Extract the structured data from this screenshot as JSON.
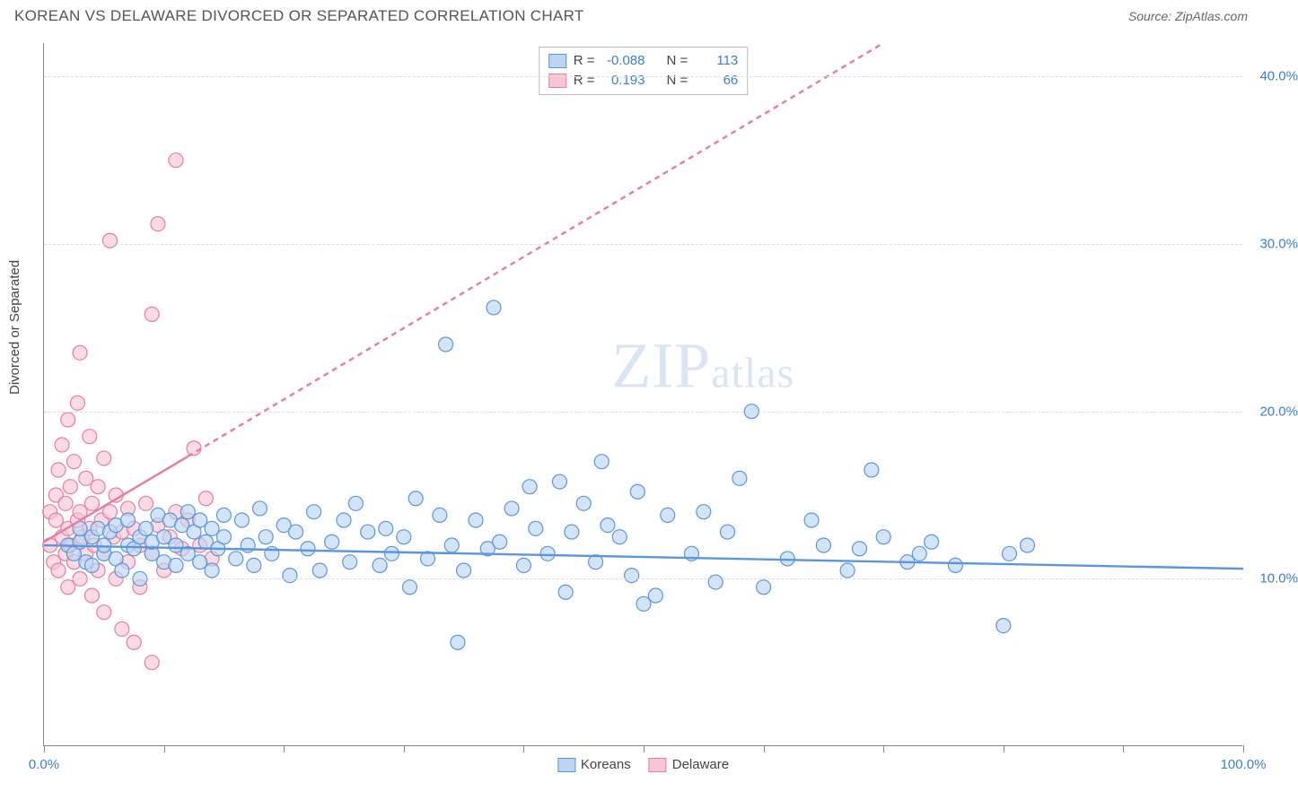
{
  "header": {
    "title": "KOREAN VS DELAWARE DIVORCED OR SEPARATED CORRELATION CHART",
    "source_label": "Source: ",
    "source_value": "ZipAtlas.com"
  },
  "chart": {
    "type": "scatter",
    "ylabel": "Divorced or Separated",
    "xlim": [
      0,
      100
    ],
    "ylim": [
      0,
      42
    ],
    "xtick_positions": [
      0,
      10,
      20,
      30,
      40,
      50,
      60,
      70,
      80,
      90,
      100
    ],
    "xtick_labels": {
      "0": "0.0%",
      "100": "100.0%"
    },
    "ytick_positions": [
      10,
      20,
      30,
      40
    ],
    "ytick_labels": [
      "10.0%",
      "20.0%",
      "30.0%",
      "40.0%"
    ],
    "grid_color": "#dddddd",
    "axis_color": "#888888",
    "background_color": "#ffffff",
    "label_color": "#3b7dd8",
    "marker_radius": 8,
    "marker_stroke_width": 1.2,
    "trend_line_width": 2.4,
    "trend_dash": "6,5"
  },
  "series": {
    "blue": {
      "label": "Koreans",
      "fill": "#bcd5f2",
      "stroke": "#5a96de",
      "fill_opacity": 0.65,
      "r_value": "-0.088",
      "n_value": "113",
      "trend": {
        "x1": 0,
        "y1": 12.0,
        "x2": 100,
        "y2": 10.6,
        "solid_until_x": 100
      },
      "points": [
        [
          2,
          12.0
        ],
        [
          2.5,
          11.5
        ],
        [
          3,
          12.2
        ],
        [
          3,
          13.0
        ],
        [
          3.5,
          11.0
        ],
        [
          4,
          12.5
        ],
        [
          4,
          10.8
        ],
        [
          4.5,
          13.0
        ],
        [
          5,
          11.5
        ],
        [
          5,
          12.0
        ],
        [
          5.5,
          12.8
        ],
        [
          6,
          11.2
        ],
        [
          6,
          13.2
        ],
        [
          6.5,
          10.5
        ],
        [
          7,
          12.0
        ],
        [
          7,
          13.5
        ],
        [
          7.5,
          11.8
        ],
        [
          8,
          12.5
        ],
        [
          8,
          10.0
        ],
        [
          8.5,
          13.0
        ],
        [
          9,
          11.5
        ],
        [
          9,
          12.2
        ],
        [
          9.5,
          13.8
        ],
        [
          10,
          11.0
        ],
        [
          10,
          12.5
        ],
        [
          10.5,
          13.5
        ],
        [
          11,
          10.8
        ],
        [
          11,
          12.0
        ],
        [
          11.5,
          13.2
        ],
        [
          12,
          11.5
        ],
        [
          12,
          14.0
        ],
        [
          12.5,
          12.8
        ],
        [
          13,
          11.0
        ],
        [
          13,
          13.5
        ],
        [
          13.5,
          12.2
        ],
        [
          14,
          10.5
        ],
        [
          14,
          13.0
        ],
        [
          14.5,
          11.8
        ],
        [
          15,
          13.8
        ],
        [
          15,
          12.5
        ],
        [
          16,
          11.2
        ],
        [
          16.5,
          13.5
        ],
        [
          17,
          12.0
        ],
        [
          17.5,
          10.8
        ],
        [
          18,
          14.2
        ],
        [
          18.5,
          12.5
        ],
        [
          19,
          11.5
        ],
        [
          20,
          13.2
        ],
        [
          20.5,
          10.2
        ],
        [
          21,
          12.8
        ],
        [
          22,
          11.8
        ],
        [
          22.5,
          14.0
        ],
        [
          23,
          10.5
        ],
        [
          24,
          12.2
        ],
        [
          25,
          13.5
        ],
        [
          25.5,
          11.0
        ],
        [
          26,
          14.5
        ],
        [
          27,
          12.8
        ],
        [
          28,
          10.8
        ],
        [
          28.5,
          13.0
        ],
        [
          29,
          11.5
        ],
        [
          30,
          12.5
        ],
        [
          30.5,
          9.5
        ],
        [
          31,
          14.8
        ],
        [
          32,
          11.2
        ],
        [
          33,
          13.8
        ],
        [
          33.5,
          24.0
        ],
        [
          34,
          12.0
        ],
        [
          34.5,
          6.2
        ],
        [
          35,
          10.5
        ],
        [
          36,
          13.5
        ],
        [
          37,
          11.8
        ],
        [
          37.5,
          26.2
        ],
        [
          38,
          12.2
        ],
        [
          39,
          14.2
        ],
        [
          40,
          10.8
        ],
        [
          40.5,
          15.5
        ],
        [
          41,
          13.0
        ],
        [
          42,
          11.5
        ],
        [
          43,
          15.8
        ],
        [
          43.5,
          9.2
        ],
        [
          44,
          12.8
        ],
        [
          45,
          14.5
        ],
        [
          46,
          11.0
        ],
        [
          46.5,
          17.0
        ],
        [
          47,
          13.2
        ],
        [
          48,
          12.5
        ],
        [
          49,
          10.2
        ],
        [
          49.5,
          15.2
        ],
        [
          50,
          8.5
        ],
        [
          51,
          9.0
        ],
        [
          52,
          13.8
        ],
        [
          54,
          11.5
        ],
        [
          55,
          14.0
        ],
        [
          56,
          9.8
        ],
        [
          57,
          12.8
        ],
        [
          58,
          16.0
        ],
        [
          59,
          20.0
        ],
        [
          60,
          9.5
        ],
        [
          62,
          11.2
        ],
        [
          64,
          13.5
        ],
        [
          65,
          12.0
        ],
        [
          67,
          10.5
        ],
        [
          68,
          11.8
        ],
        [
          69,
          16.5
        ],
        [
          70,
          12.5
        ],
        [
          72,
          11.0
        ],
        [
          73,
          11.5
        ],
        [
          74,
          12.2
        ],
        [
          76,
          10.8
        ],
        [
          80,
          7.2
        ],
        [
          80.5,
          11.5
        ],
        [
          82,
          12.0
        ]
      ]
    },
    "pink": {
      "label": "Delaware",
      "fill": "#f7c6d4",
      "stroke": "#e97ba1",
      "fill_opacity": 0.65,
      "r_value": "0.193",
      "n_value": "66",
      "trend": {
        "x1": 0,
        "y1": 12.2,
        "x2": 70,
        "y2": 42,
        "solid_until_x": 12
      },
      "points": [
        [
          0.5,
          12.0
        ],
        [
          0.5,
          14.0
        ],
        [
          0.8,
          11.0
        ],
        [
          1.0,
          13.5
        ],
        [
          1.0,
          15.0
        ],
        [
          1.2,
          10.5
        ],
        [
          1.2,
          16.5
        ],
        [
          1.5,
          12.5
        ],
        [
          1.5,
          18.0
        ],
        [
          1.8,
          11.5
        ],
        [
          1.8,
          14.5
        ],
        [
          2.0,
          13.0
        ],
        [
          2.0,
          19.5
        ],
        [
          2.0,
          9.5
        ],
        [
          2.2,
          12.0
        ],
        [
          2.2,
          15.5
        ],
        [
          2.5,
          11.0
        ],
        [
          2.5,
          17.0
        ],
        [
          2.8,
          13.5
        ],
        [
          2.8,
          20.5
        ],
        [
          3.0,
          10.0
        ],
        [
          3.0,
          14.0
        ],
        [
          3.0,
          23.5
        ],
        [
          3.2,
          12.5
        ],
        [
          3.5,
          11.5
        ],
        [
          3.5,
          16.0
        ],
        [
          3.8,
          13.0
        ],
        [
          3.8,
          18.5
        ],
        [
          4.0,
          9.0
        ],
        [
          4.0,
          14.5
        ],
        [
          4.2,
          12.0
        ],
        [
          4.5,
          10.5
        ],
        [
          4.5,
          15.5
        ],
        [
          4.8,
          13.5
        ],
        [
          5.0,
          8.0
        ],
        [
          5.0,
          11.5
        ],
        [
          5.0,
          17.2
        ],
        [
          5.5,
          14.0
        ],
        [
          5.5,
          30.2
        ],
        [
          5.8,
          12.5
        ],
        [
          6.0,
          10.0
        ],
        [
          6.0,
          15.0
        ],
        [
          6.5,
          7.0
        ],
        [
          6.5,
          12.8
        ],
        [
          7.0,
          11.0
        ],
        [
          7.0,
          14.2
        ],
        [
          7.5,
          6.2
        ],
        [
          7.5,
          13.0
        ],
        [
          8.0,
          9.5
        ],
        [
          8.0,
          12.0
        ],
        [
          8.5,
          14.5
        ],
        [
          9.0,
          11.5
        ],
        [
          9.0,
          5.0
        ],
        [
          9.0,
          25.8
        ],
        [
          9.5,
          13.2
        ],
        [
          9.5,
          31.2
        ],
        [
          10.0,
          10.5
        ],
        [
          10.5,
          12.5
        ],
        [
          11.0,
          14.0
        ],
        [
          11.0,
          35.0
        ],
        [
          11.5,
          11.8
        ],
        [
          12.0,
          13.5
        ],
        [
          12.5,
          17.8
        ],
        [
          13.0,
          12.0
        ],
        [
          13.5,
          14.8
        ],
        [
          14.0,
          11.2
        ]
      ]
    }
  },
  "legend_top": {
    "r_label": "R =",
    "n_label": "N ="
  },
  "watermark": {
    "part1": "ZIP",
    "part2": "atlas"
  }
}
